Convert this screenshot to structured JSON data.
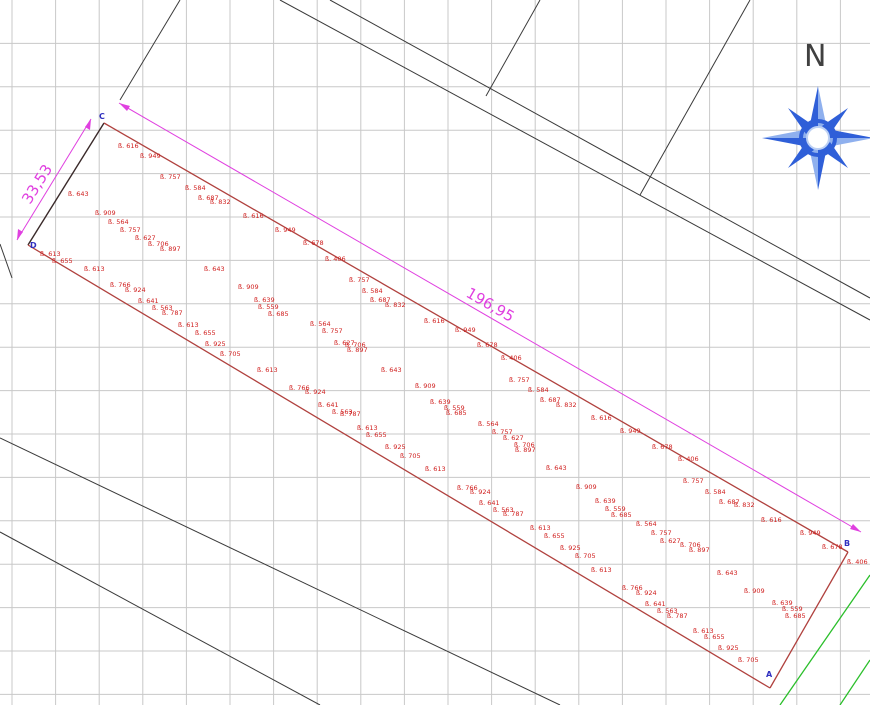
{
  "compass": {
    "north_label": "N",
    "primary_color": "#2f5fd8",
    "accent_color": "#bcd0f4"
  },
  "dimensions": {
    "width_label": "33,53",
    "length_label": "196,95",
    "color": "#e040e0"
  },
  "corners": {
    "a": "A",
    "b": "B",
    "c": "C",
    "d": "D"
  },
  "plot_color": "#b0413e",
  "elevation_color": "#d0201f",
  "elevations": [
    "ß. 616",
    "ß. 949",
    "ß. 643",
    "ß. 757",
    "ß. 584",
    "ß. 909",
    "ß. 687",
    "ß. 832",
    "ß. 564",
    "ß. 757",
    "ß. 627",
    "ß. 706",
    "ß. 897",
    "ß. 616",
    "ß. 949",
    "ß. 613",
    "ß. 655",
    "ß. 613",
    "ß. 678",
    "ß. 406",
    "ß. 643",
    "ß. 766",
    "ß. 924",
    "ß. 757",
    "ß. 641",
    "ß. 563",
    "ß. 787",
    "ß. 584",
    "ß. 909",
    "ß. 639",
    "ß. 559",
    "ß. 685",
    "ß. 687",
    "ß. 832",
    "ß. 613",
    "ß. 655",
    "ß. 616",
    "ß. 925",
    "ß. 705",
    "ß. 564",
    "ß. 949",
    "ß. 757",
    "ß. 627",
    "ß. 706",
    "ß. 897",
    "ß. 678",
    "ß. 613",
    "ß. 406",
    "ß. 643",
    "ß. 766",
    "ß. 924",
    "ß. 757",
    "ß. 641",
    "ß. 563",
    "ß. 787",
    "ß. 909",
    "ß. 584",
    "ß. 687",
    "ß. 832",
    "ß. 639",
    "ß. 559",
    "ß. 685",
    "ß. 613",
    "ß. 655",
    "ß. 616",
    "ß. 564",
    "ß. 925",
    "ß. 949",
    "ß. 757",
    "ß. 705",
    "ß. 627",
    "ß. 706",
    "ß. 897",
    "ß. 678",
    "ß. 613",
    "ß. 406",
    "ß. 643",
    "ß. 766",
    "ß. 924",
    "ß. 757",
    "ß. 641",
    "ß. 563",
    "ß. 787",
    "ß. 909",
    "ß. 584",
    "ß. 613",
    "ß. 687",
    "ß. 832",
    "ß. 655",
    "ß. 639",
    "ß. 559",
    "ß. 685",
    "ß. 925",
    "ß. 705",
    "ß. 616",
    "ß. 564",
    "ß. 949",
    "ß. 757",
    "ß. 627",
    "ß. 706",
    "ß. 897",
    "ß. 678",
    "ß. 613",
    "ß. 406",
    "ß. 643",
    "ß. 766",
    "ß. 924",
    "ß. 909",
    "ß. 641",
    "ß. 563",
    "ß. 787",
    "ß. 639",
    "ß. 559",
    "ß. 685",
    "ß. 613",
    "ß. 655",
    "ß. 925",
    "ß. 705"
  ]
}
